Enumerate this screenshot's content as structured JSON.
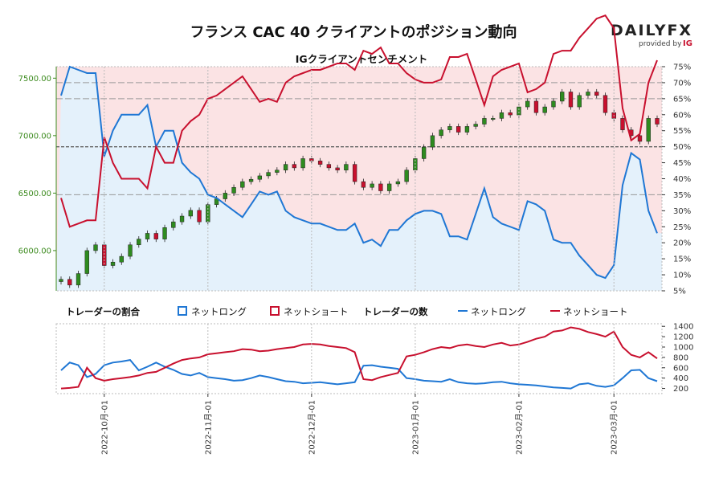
{
  "title": "フランス CAC 40 クライアントのポジション動向",
  "brand": {
    "name": "DAILYFX",
    "provided_by": "provided by",
    "ig": "IG"
  },
  "colors": {
    "long": "#1f77d4",
    "short": "#c8102e",
    "long_bg": "#e4f1fb",
    "short_bg": "#fbe3e4",
    "up": "#2e8b1f",
    "down": "#c8102e",
    "axis_green": "#3d8b1f"
  },
  "chart_data": [
    {
      "type": "candlestick+line",
      "title": "IGクライアントセンチメント",
      "left_axis": {
        "ticks": [
          6000,
          6500,
          7000,
          7500
        ],
        "tick_labels": [
          "6000.00",
          "6500.00",
          "7000.00",
          "7500.00"
        ],
        "ylim": [
          5650,
          7600
        ]
      },
      "right_axis": {
        "ticks": [
          5,
          10,
          15,
          20,
          25,
          30,
          35,
          40,
          45,
          50,
          55,
          60,
          65,
          70,
          75
        ],
        "tick_labels": [
          "5%",
          "10%",
          "15%",
          "20%",
          "25%",
          "30%",
          "35%",
          "40%",
          "45%",
          "50%",
          "55%",
          "60%",
          "65%",
          "70%",
          "75%"
        ],
        "ylim": [
          5,
          75
        ]
      },
      "reference_lines_pct": [
        35,
        50,
        65,
        70
      ],
      "dates": [
        "2022-10-01",
        "2022-11-01",
        "2022-12-01",
        "2023-01-01",
        "2023-02-01",
        "2023-03-01"
      ],
      "price_close": [
        5750,
        5700,
        5800,
        6000,
        6050,
        5870,
        5900,
        5950,
        6050,
        6100,
        6150,
        6100,
        6200,
        6250,
        6300,
        6350,
        6250,
        6400,
        6450,
        6500,
        6550,
        6600,
        6620,
        6650,
        6680,
        6700,
        6750,
        6720,
        6800,
        6780,
        6750,
        6720,
        6700,
        6750,
        6600,
        6550,
        6580,
        6520,
        6580,
        6600,
        6700,
        6800,
        6900,
        7000,
        7050,
        7080,
        7030,
        7080,
        7100,
        7150,
        7150,
        7200,
        7180,
        7250,
        7300,
        7200,
        7250,
        7300,
        7380,
        7250,
        7350,
        7380,
        7350,
        7200,
        7150,
        7050,
        7000,
        6950,
        7150,
        7100
      ],
      "net_long_pct": [
        66,
        75,
        74,
        73,
        73,
        47,
        55,
        60,
        60,
        60,
        63,
        50,
        55,
        55,
        45,
        42,
        40,
        35,
        34,
        32,
        30,
        28,
        32,
        36,
        35,
        36,
        30,
        28,
        27,
        26,
        26,
        25,
        24,
        24,
        26,
        20,
        21,
        19,
        24,
        24,
        27,
        29,
        30,
        30,
        29,
        22,
        22,
        21,
        29,
        37,
        28,
        26,
        25,
        24,
        33,
        32,
        30,
        21,
        20,
        20,
        16,
        13,
        10,
        9,
        13,
        38,
        48,
        46,
        30,
        23
      ],
      "net_short_pct": [
        34,
        25,
        26,
        27,
        27,
        53,
        45,
        40,
        40,
        40,
        37,
        50,
        45,
        45,
        55,
        58,
        60,
        65,
        66,
        68,
        70,
        72,
        68,
        64,
        65,
        64,
        70,
        72,
        73,
        74,
        74,
        75,
        76,
        76,
        74,
        80,
        79,
        81,
        76,
        76,
        73,
        71,
        70,
        70,
        71,
        78,
        78,
        79,
        71,
        63,
        72,
        74,
        75,
        76,
        67,
        68,
        70,
        79,
        80,
        80,
        84,
        87,
        90,
        91,
        87,
        62,
        52,
        54,
        70,
        77
      ]
    },
    {
      "type": "line",
      "title": "トレーダーの数",
      "right_axis": {
        "ticks": [
          200,
          400,
          600,
          800,
          1000,
          1200,
          1400
        ],
        "tick_labels": [
          "200",
          "400",
          "600",
          "800",
          "1000",
          "1200",
          "1400"
        ],
        "ylim": [
          100,
          1450
        ]
      },
      "net_long_count": [
        550,
        700,
        650,
        420,
        480,
        650,
        700,
        720,
        750,
        550,
        620,
        700,
        620,
        560,
        480,
        450,
        500,
        420,
        400,
        380,
        350,
        360,
        400,
        450,
        420,
        380,
        340,
        330,
        300,
        310,
        320,
        300,
        280,
        300,
        320,
        640,
        650,
        620,
        600,
        580,
        400,
        380,
        350,
        340,
        330,
        380,
        320,
        300,
        290,
        300,
        320,
        330,
        300,
        280,
        270,
        260,
        240,
        220,
        210,
        200,
        280,
        300,
        250,
        230,
        260,
        400,
        550,
        560,
        400,
        340
      ],
      "net_short_count": [
        200,
        210,
        230,
        600,
        400,
        350,
        380,
        400,
        420,
        450,
        500,
        520,
        600,
        680,
        750,
        780,
        800,
        860,
        880,
        900,
        920,
        960,
        950,
        920,
        930,
        960,
        980,
        1000,
        1050,
        1060,
        1050,
        1020,
        1000,
        980,
        900,
        380,
        360,
        420,
        460,
        500,
        820,
        850,
        900,
        960,
        1000,
        980,
        1030,
        1050,
        1020,
        1000,
        1050,
        1080,
        1030,
        1050,
        1100,
        1160,
        1200,
        1300,
        1320,
        1380,
        1350,
        1290,
        1250,
        1200,
        1300,
        1000,
        850,
        800,
        900,
        780
      ]
    }
  ],
  "legend": {
    "ratio_heading": "トレーダーの割合",
    "count_heading": "トレーダーの数",
    "long_label": "ネットロング",
    "short_label": "ネットショート"
  }
}
